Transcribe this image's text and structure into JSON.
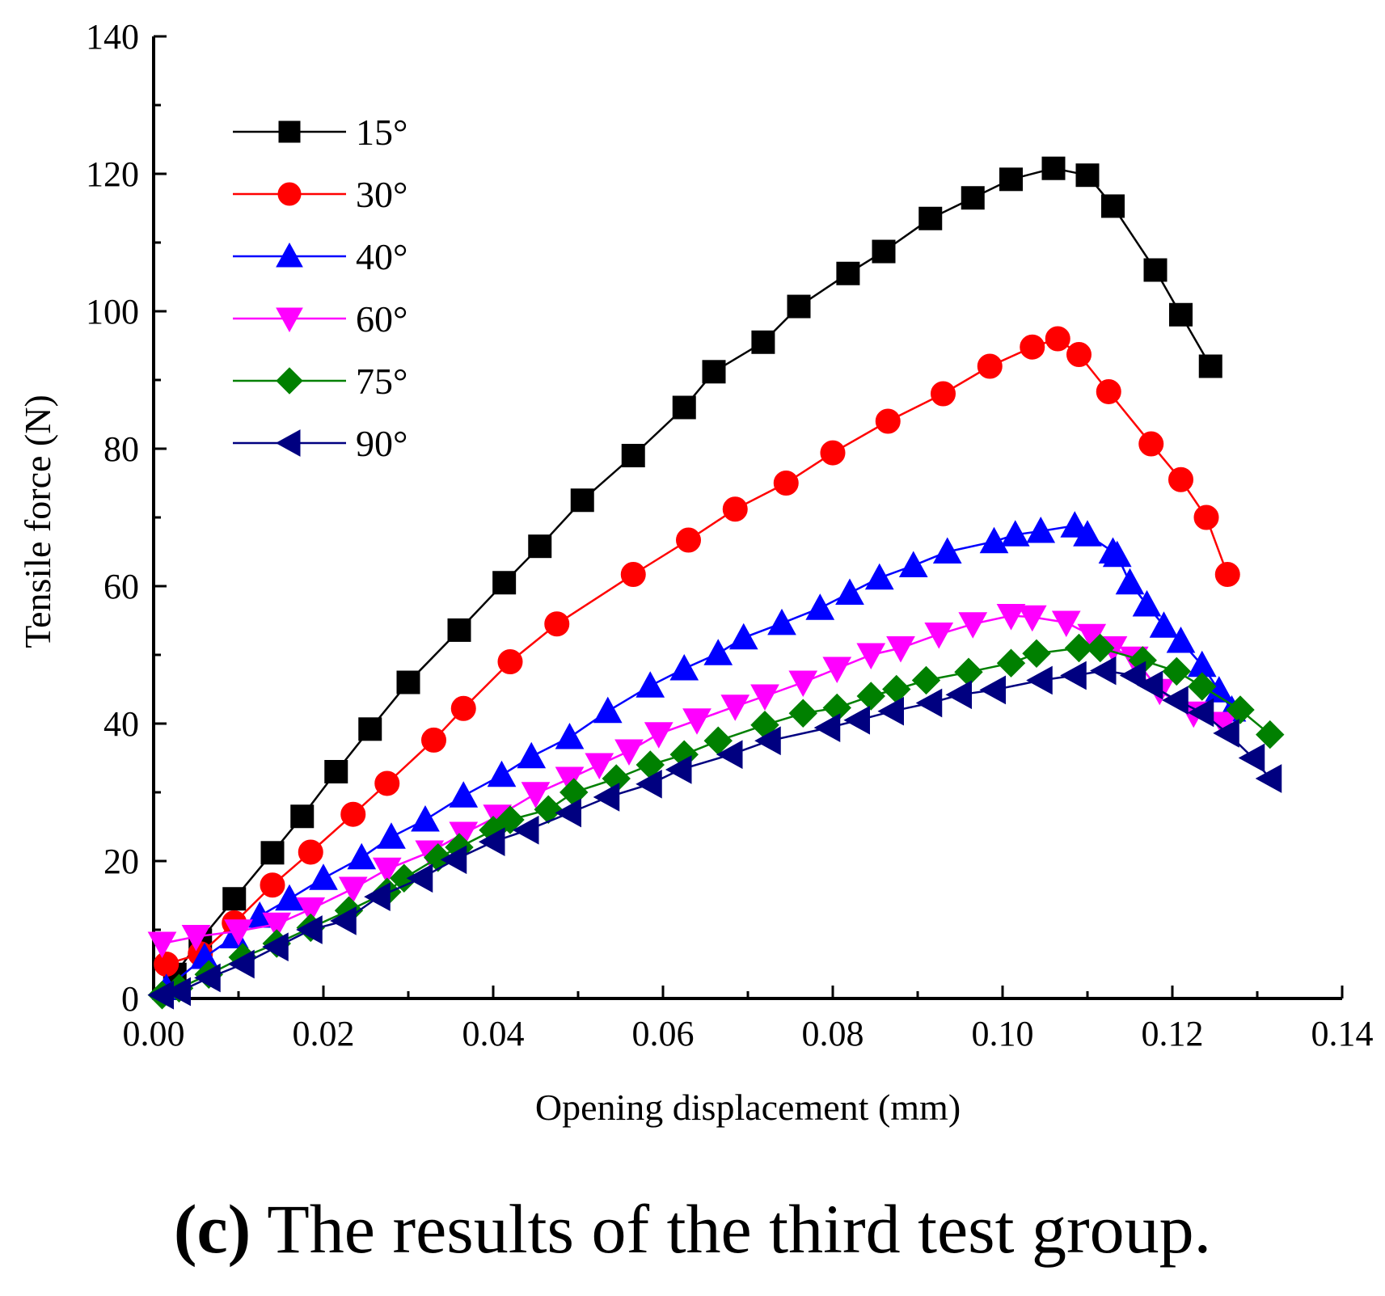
{
  "chart_data": {
    "type": "line",
    "title": "",
    "xlabel": "Opening displacement (mm)",
    "ylabel": "Tensile force (N)",
    "xlim": [
      0,
      0.14
    ],
    "ylim": [
      0,
      140
    ],
    "xticks": [
      "0.00",
      "0.02",
      "0.04",
      "0.06",
      "0.08",
      "0.10",
      "0.12",
      "0.14"
    ],
    "yticks": [
      "0",
      "20",
      "40",
      "60",
      "80",
      "100",
      "120",
      "140"
    ],
    "legend_position": "top-left",
    "series": [
      {
        "name": "15°",
        "color": "#000000",
        "marker": "square",
        "x": [
          0.0025,
          0.0055,
          0.0095,
          0.014,
          0.0175,
          0.0215,
          0.0255,
          0.03,
          0.036,
          0.0413,
          0.0455,
          0.0505,
          0.0565,
          0.0625,
          0.066,
          0.0718,
          0.076,
          0.0818,
          0.086,
          0.0915,
          0.0965,
          0.101,
          0.106,
          0.11,
          0.113,
          0.118,
          0.121,
          0.1245
        ],
        "y": [
          3.5,
          8.5,
          14.5,
          21.2,
          26.5,
          33.0,
          39.2,
          46.0,
          53.6,
          60.5,
          65.8,
          72.5,
          79.0,
          86.0,
          91.2,
          95.5,
          100.7,
          105.5,
          108.7,
          113.5,
          116.5,
          119.2,
          120.8,
          119.8,
          115.3,
          106.0,
          99.5,
          92.0
        ]
      },
      {
        "name": "30°",
        "color": "#ff0000",
        "marker": "circle",
        "x": [
          0.0015,
          0.0055,
          0.0095,
          0.014,
          0.0185,
          0.0235,
          0.0275,
          0.033,
          0.0365,
          0.042,
          0.0475,
          0.0565,
          0.063,
          0.0685,
          0.0745,
          0.08,
          0.0865,
          0.093,
          0.0985,
          0.1035,
          0.1065,
          0.109,
          0.1125,
          0.1175,
          0.121,
          0.124,
          0.1265
        ],
        "y": [
          5.0,
          6.5,
          11.0,
          16.5,
          21.3,
          26.8,
          31.3,
          37.6,
          42.2,
          49.0,
          54.5,
          61.7,
          66.7,
          71.2,
          75.0,
          79.4,
          84.0,
          88.0,
          92.0,
          94.8,
          96.0,
          93.7,
          88.3,
          80.7,
          75.5,
          70.0,
          61.7
        ]
      },
      {
        "name": "40°",
        "color": "#0000ff",
        "marker": "triangle-up",
        "x": [
          0.0015,
          0.006,
          0.0095,
          0.0125,
          0.016,
          0.02,
          0.0245,
          0.028,
          0.032,
          0.0365,
          0.041,
          0.0445,
          0.049,
          0.0535,
          0.0585,
          0.0625,
          0.0665,
          0.0695,
          0.074,
          0.0785,
          0.082,
          0.0855,
          0.0895,
          0.0935,
          0.099,
          0.1015,
          0.1045,
          0.1085,
          0.11,
          0.113,
          0.1135,
          0.115,
          0.117,
          0.119,
          0.121,
          0.1235,
          0.1255,
          0.127
        ],
        "y": [
          1.5,
          6.0,
          9.0,
          12.0,
          14.5,
          17.5,
          20.5,
          23.5,
          26.0,
          29.5,
          32.5,
          35.2,
          38.0,
          41.8,
          45.5,
          48.0,
          50.2,
          52.5,
          54.6,
          56.8,
          59.0,
          61.2,
          63.0,
          65.0,
          66.5,
          67.5,
          68.0,
          68.8,
          67.5,
          65.0,
          64.5,
          60.5,
          57.3,
          54.2,
          52.0,
          48.5,
          44.8,
          42.0
        ]
      },
      {
        "name": "60°",
        "color": "#ff00ff",
        "marker": "triangle-down",
        "x": [
          0.001,
          0.005,
          0.01,
          0.0145,
          0.0185,
          0.0235,
          0.0275,
          0.0325,
          0.0365,
          0.0405,
          0.045,
          0.049,
          0.0525,
          0.056,
          0.0595,
          0.064,
          0.0685,
          0.072,
          0.0765,
          0.0805,
          0.0845,
          0.088,
          0.0925,
          0.0965,
          0.101,
          0.1035,
          0.1075,
          0.1105,
          0.113,
          0.1155,
          0.1185,
          0.1225,
          0.126
        ],
        "y": [
          8.0,
          9.0,
          9.8,
          10.8,
          13.0,
          16.0,
          18.8,
          21.3,
          24.0,
          26.5,
          29.8,
          32.0,
          34.0,
          36.0,
          38.5,
          40.5,
          42.5,
          44.0,
          46.0,
          48.0,
          50.0,
          51.0,
          53.0,
          54.5,
          55.7,
          55.5,
          54.7,
          52.8,
          51.0,
          49.5,
          44.8,
          41.5,
          40.0
        ]
      },
      {
        "name": "75°",
        "color": "#008000",
        "marker": "diamond",
        "x": [
          0.001,
          0.003,
          0.0065,
          0.0105,
          0.0145,
          0.0185,
          0.023,
          0.0275,
          0.0295,
          0.0335,
          0.036,
          0.04,
          0.042,
          0.0465,
          0.0495,
          0.0545,
          0.0585,
          0.0625,
          0.0665,
          0.072,
          0.0765,
          0.0805,
          0.0845,
          0.0875,
          0.091,
          0.096,
          0.101,
          0.104,
          0.109,
          0.1115,
          0.1165,
          0.1205,
          0.1235,
          0.128,
          0.1315
        ],
        "y": [
          0.5,
          1.5,
          3.5,
          6.0,
          8.0,
          10.3,
          12.8,
          15.5,
          17.5,
          20.5,
          22.0,
          24.5,
          26.0,
          27.5,
          30.0,
          32.0,
          34.0,
          35.5,
          37.5,
          39.8,
          41.5,
          42.3,
          44.0,
          45.0,
          46.3,
          47.5,
          48.8,
          50.2,
          51.0,
          51.0,
          49.2,
          47.6,
          45.4,
          42.0,
          38.4
        ]
      },
      {
        "name": "90°",
        "color": "#000080",
        "marker": "triangle-left",
        "x": [
          0.001,
          0.003,
          0.0065,
          0.0105,
          0.0145,
          0.0185,
          0.0225,
          0.0265,
          0.0315,
          0.0355,
          0.04,
          0.044,
          0.049,
          0.0535,
          0.0585,
          0.062,
          0.068,
          0.0725,
          0.0795,
          0.083,
          0.087,
          0.0915,
          0.095,
          0.099,
          0.1045,
          0.1085,
          0.112,
          0.1155,
          0.1175,
          0.1205,
          0.1235,
          0.1265,
          0.1295,
          0.1315
        ],
        "y": [
          0.5,
          1.0,
          3.0,
          5.0,
          7.5,
          10.0,
          11.3,
          14.8,
          17.5,
          20.2,
          22.8,
          24.5,
          27.0,
          29.3,
          31.2,
          33.3,
          35.5,
          37.5,
          39.4,
          40.5,
          41.8,
          43.0,
          44.2,
          44.9,
          46.3,
          47.0,
          47.7,
          47.0,
          45.6,
          43.4,
          41.6,
          38.6,
          35.0,
          32.0
        ]
      }
    ]
  },
  "caption": {
    "letter": "(c)",
    "text": "The results of the third test group."
  }
}
